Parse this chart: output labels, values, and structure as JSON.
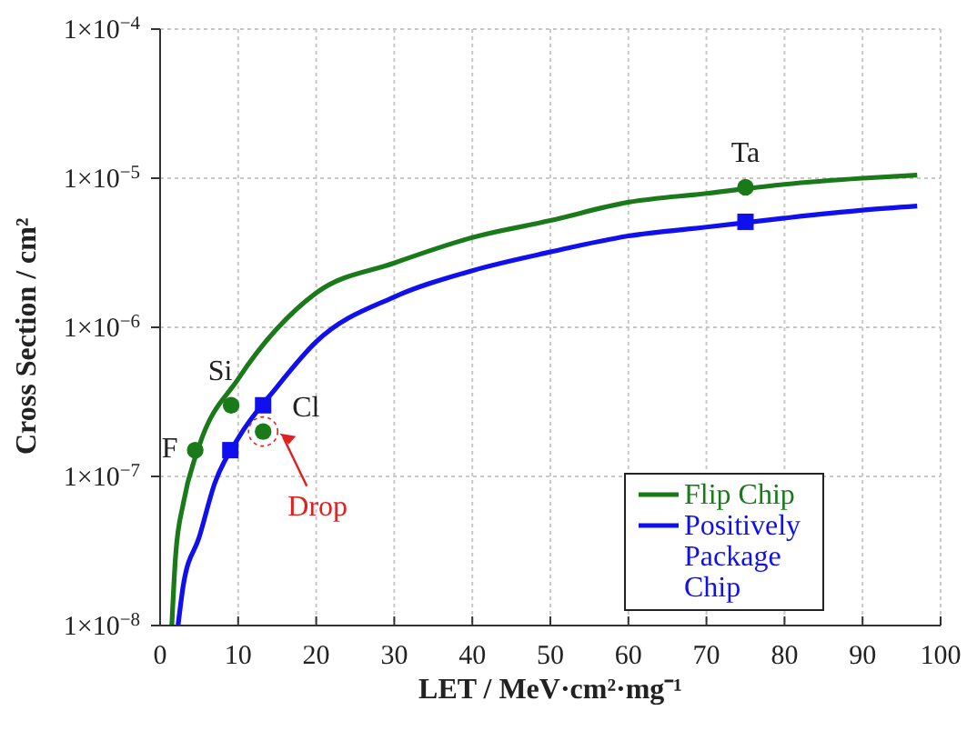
{
  "chart_data": {
    "type": "line",
    "xlabel": "LET / MeV·cm²·mg⁻¹",
    "ylabel": "Cross Section / cm²",
    "xlim": [
      0,
      100
    ],
    "xticks": [
      0,
      10,
      20,
      30,
      40,
      50,
      60,
      70,
      80,
      90,
      100
    ],
    "ylim": [
      1e-08,
      0.0001
    ],
    "yticks": [
      {
        "value": 1e-08,
        "label": "1×10$^{−8}$"
      },
      {
        "value": 1e-07,
        "label": "1×10$^{−7}$"
      },
      {
        "value": 1e-06,
        "label": "1×10$^{−6}$"
      },
      {
        "value": 1e-05,
        "label": "1×10$^{−5}$"
      },
      {
        "value": 0.0001,
        "label": "1×10$^{−4}$"
      }
    ],
    "log": "y",
    "grid": true,
    "legend": "bottom right",
    "series": [
      {
        "name": "Flip Chip",
        "type": "line",
        "color": "#1a7a1a",
        "x": [
          1.5,
          2,
          3,
          5,
          10,
          20,
          30,
          40,
          50,
          60,
          70,
          80,
          90,
          97
        ],
        "values": [
          1e-08,
          3e-08,
          6.7e-08,
          1.6e-07,
          4.5e-07,
          1.7e-06,
          2.7e-06,
          4e-06,
          5.2e-06,
          6.9e-06,
          7.9e-06,
          9.1e-06,
          1e-05,
          1.05e-05
        ]
      },
      {
        "name": "Positively Package Chip",
        "type": "line",
        "color": "#1010ee",
        "x": [
          2.3,
          3,
          5,
          7,
          10,
          15,
          20,
          30,
          40,
          50,
          60,
          70,
          80,
          90,
          97
        ],
        "values": [
          1e-08,
          1.9e-08,
          3.9e-08,
          9e-08,
          1.8e-07,
          4e-07,
          8e-07,
          1.6e-06,
          2.4e-06,
          3.2e-06,
          4.1e-06,
          4.7e-06,
          5.4e-06,
          6.1e-06,
          6.5e-06
        ]
      },
      {
        "type": "scatter",
        "marker": "circle",
        "color": "#1a7a1a",
        "x": [
          4.5,
          9.1,
          13.2,
          75
        ],
        "values": [
          1.5e-07,
          3e-07,
          2e-07,
          8.7e-06
        ]
      },
      {
        "type": "scatter",
        "marker": "square",
        "color": "#1010ee",
        "x": [
          9,
          13.2,
          75
        ],
        "values": [
          1.5e-07,
          3e-07,
          5.1e-06
        ]
      }
    ],
    "annotations": [
      {
        "text": "F",
        "x": 4.5,
        "y": 1.5e-07
      },
      {
        "text": "Si",
        "x": 9.1,
        "y": 3e-07
      },
      {
        "text": "Cl",
        "x": 13.2,
        "y": 3e-07
      },
      {
        "text": "Ta",
        "x": 75,
        "y": 8.7e-06
      },
      {
        "text": "Drop",
        "x": 13.2,
        "y": 2e-07
      }
    ]
  }
}
